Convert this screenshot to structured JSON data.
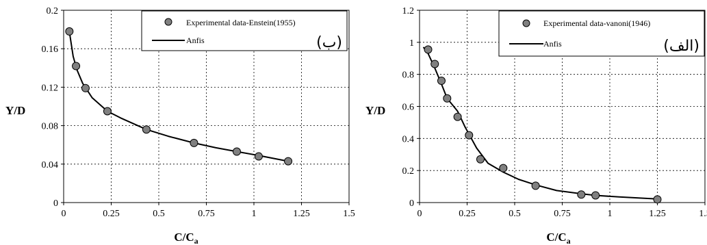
{
  "chart_data": [
    {
      "type": "scatter",
      "panel_label": "(ب)",
      "xlabel": "C/C",
      "xlabel_sub": "a",
      "ylabel": "Y/D",
      "xlim": [
        0,
        1.5
      ],
      "ylim": [
        0,
        0.2
      ],
      "xticks": [
        "0",
        "0.25",
        "0.5",
        "0.75",
        "1",
        "1.25",
        "1.5"
      ],
      "yticks": [
        "0",
        "0.04",
        "0.08",
        "0.12",
        "0.16",
        "0.2"
      ],
      "grid": true,
      "legend": "top-right",
      "series": [
        {
          "name": "Experimental data-Enstein(1955)",
          "type": "scatter",
          "color": "#808080",
          "x": [
            0.03,
            0.065,
            0.115,
            0.23,
            0.435,
            0.685,
            0.91,
            1.025,
            1.18
          ],
          "y": [
            0.178,
            0.142,
            0.119,
            0.095,
            0.076,
            0.062,
            0.053,
            0.048,
            0.043
          ]
        },
        {
          "name": "Anfis",
          "type": "line",
          "color": "#000000",
          "x": [
            0.03,
            0.05,
            0.07,
            0.1,
            0.15,
            0.23,
            0.3,
            0.435,
            0.55,
            0.685,
            0.8,
            0.91,
            1.025,
            1.18
          ],
          "y": [
            0.178,
            0.152,
            0.138,
            0.124,
            0.109,
            0.095,
            0.088,
            0.076,
            0.069,
            0.062,
            0.057,
            0.053,
            0.049,
            0.043
          ]
        }
      ]
    },
    {
      "type": "scatter",
      "panel_label": "(الف)",
      "xlabel": "C/C",
      "xlabel_sub": "a",
      "ylabel": "Y/D",
      "xlim": [
        0,
        1.5
      ],
      "ylim": [
        0,
        1.2
      ],
      "xticks": [
        "0",
        "0.25",
        "0.5",
        "0.75",
        "1",
        "1.25",
        "1.5"
      ],
      "yticks": [
        "0",
        "0.2",
        "0.4",
        "0.6",
        "0.8",
        "1",
        "1.2"
      ],
      "grid": true,
      "legend": "top-right",
      "series": [
        {
          "name": "Experimental data-vanoni(1946)",
          "type": "scatter",
          "color": "#808080",
          "x": [
            0.045,
            0.08,
            0.115,
            0.145,
            0.2,
            0.26,
            0.32,
            0.44,
            0.61,
            0.85,
            0.925,
            1.25
          ],
          "y": [
            0.955,
            0.865,
            0.76,
            0.65,
            0.535,
            0.42,
            0.27,
            0.215,
            0.105,
            0.05,
            0.045,
            0.02
          ]
        },
        {
          "name": "Anfis",
          "type": "line",
          "color": "#000000",
          "x": [
            0.02,
            0.045,
            0.08,
            0.115,
            0.145,
            0.2,
            0.24,
            0.3,
            0.36,
            0.44,
            0.52,
            0.61,
            0.72,
            0.85,
            0.925,
            1.05,
            1.25
          ],
          "y": [
            0.97,
            0.93,
            0.84,
            0.74,
            0.65,
            0.57,
            0.47,
            0.34,
            0.245,
            0.19,
            0.145,
            0.11,
            0.075,
            0.055,
            0.045,
            0.035,
            0.022
          ]
        }
      ]
    }
  ]
}
